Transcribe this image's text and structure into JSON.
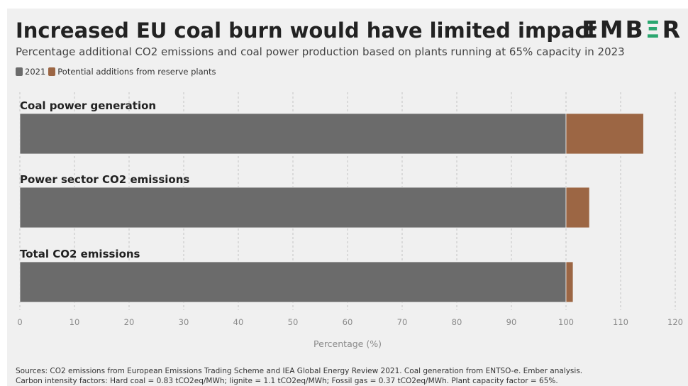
{
  "header": {
    "title": "Increased EU coal burn would have limited impact",
    "logo_left": "EMB",
    "logo_mid": "Ξ",
    "logo_right": "R",
    "subtitle": "Percentage additional CO2 emissions and coal power production based on plants running at 65% capacity in 2023"
  },
  "legend": {
    "items": [
      {
        "label": "2021",
        "color": "#6b6b6b"
      },
      {
        "label": "Potential additions from reserve plants",
        "color": "#9c6644"
      }
    ]
  },
  "colors": {
    "base": "#6b6b6b",
    "addition": "#9c6644",
    "background": "#f0f0f0",
    "logo_accent": "#2aa66f"
  },
  "chart_data": {
    "type": "bar",
    "orientation": "horizontal",
    "stacked": true,
    "categories": [
      "Coal power generation",
      "Power sector CO2 emissions",
      "Total CO2 emissions"
    ],
    "series": [
      {
        "name": "2021",
        "values": [
          100,
          100,
          100
        ]
      },
      {
        "name": "Potential additions from reserve plants",
        "values": [
          14.2,
          4.3,
          1.3
        ]
      }
    ],
    "xlabel": "Percentage (%)",
    "xlim": [
      0,
      120
    ],
    "xticks": [
      0,
      10,
      20,
      30,
      40,
      50,
      60,
      70,
      80,
      90,
      100,
      110,
      120
    ],
    "grid": "vertical dashed",
    "legend_position": "top-left"
  },
  "footer": {
    "sources_line1": "Sources: CO2 emissions from European Emissions Trading Scheme and IEA Global Energy Review 2021. Coal generation from ENTSO-e. Ember analysis.",
    "sources_line2": "Carbon intensity factors: Hard coal = 0.83 tCO2eq/MWh; lignite = 1.1 tCO2eq/MWh; Fossil gas = 0.37 tCO2eq/MWh. Plant capacity factor = 65%."
  }
}
